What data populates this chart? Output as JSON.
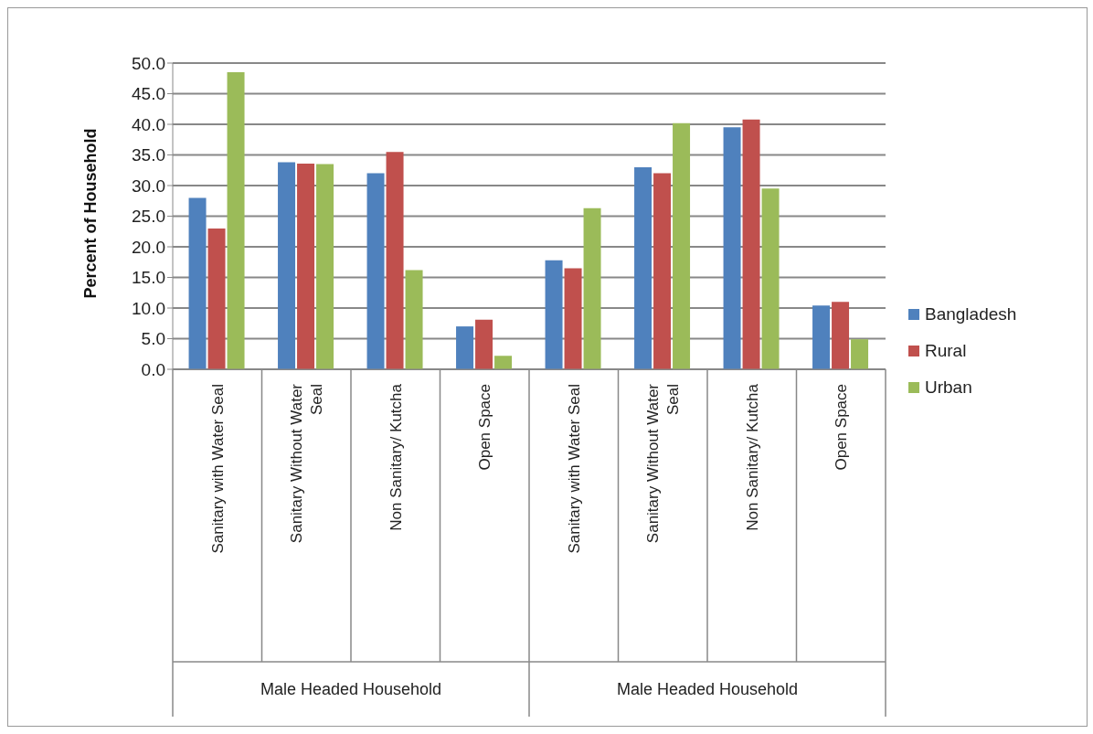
{
  "chart_data": {
    "type": "bar",
    "ylabel": "Percent of Household",
    "categories": [
      "Sanitary with Water Seal",
      "Sanitary Without Water Seal",
      "Non Sanitary/ Kutcha",
      "Open Space",
      "Sanitary with Water Seal",
      "Sanitary Without Water Seal",
      "Non Sanitary/ Kutcha",
      "Open Space"
    ],
    "series": [
      {
        "name": "Bangladesh",
        "color": "#4f81bd",
        "values": [
          28.0,
          33.8,
          32.0,
          7.0,
          17.8,
          33.0,
          39.5,
          10.4
        ]
      },
      {
        "name": "Rural",
        "color": "#c0504d",
        "values": [
          23.0,
          33.6,
          35.5,
          8.1,
          16.5,
          32.0,
          40.8,
          11.0
        ]
      },
      {
        "name": "Urban",
        "color": "#9bbb59",
        "values": [
          48.5,
          33.5,
          16.2,
          2.2,
          26.3,
          40.2,
          29.5,
          4.9
        ]
      }
    ],
    "ylim": [
      0,
      50
    ],
    "yticks": [
      {
        "value": 0,
        "label": "0.0"
      },
      {
        "value": 5,
        "label": "5.0"
      },
      {
        "value": 10,
        "label": "10.0"
      },
      {
        "value": 15,
        "label": "15.0"
      },
      {
        "value": 20,
        "label": "20.0"
      },
      {
        "value": 25,
        "label": "25.0"
      },
      {
        "value": 30,
        "label": "30.0"
      },
      {
        "value": 35,
        "label": "35.0"
      },
      {
        "value": 40,
        "label": "40.0"
      },
      {
        "value": 45,
        "label": "45.0"
      },
      {
        "value": 50,
        "label": "50.0"
      }
    ],
    "grid": "y",
    "legend": "right",
    "annotations": [
      "Male Headed Household",
      "Male Headed Household"
    ]
  }
}
